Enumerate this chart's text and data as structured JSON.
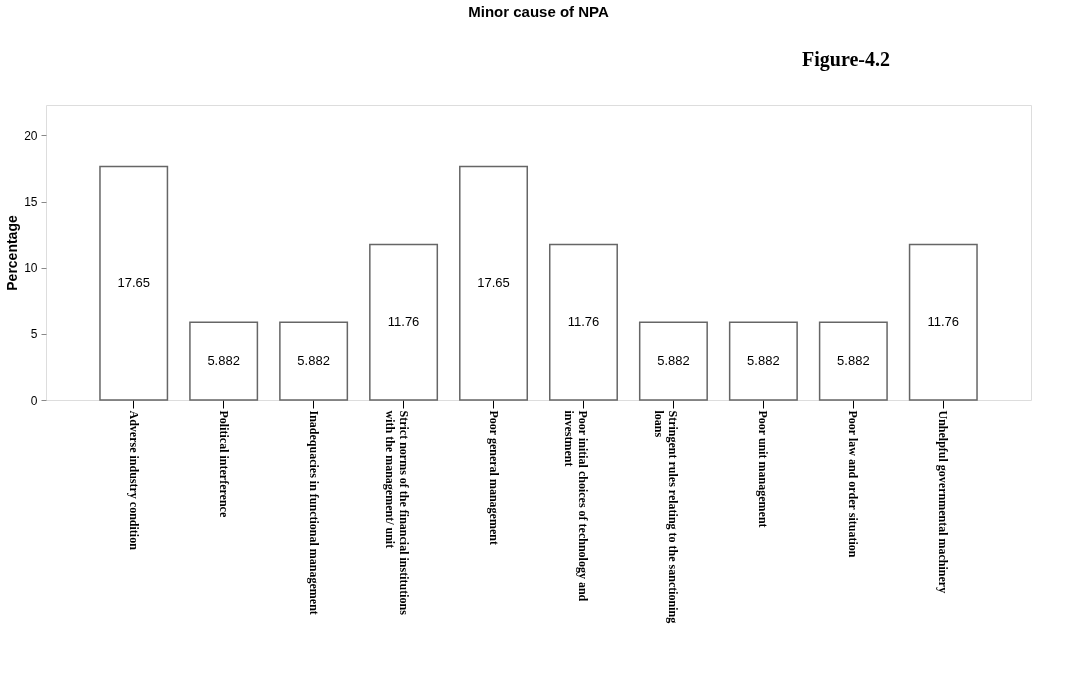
{
  "chart_data": {
    "type": "bar",
    "title": "Minor cause of NPA",
    "ylabel": "Percentage",
    "annotations": [
      "Figure-4.2"
    ],
    "categories": [
      "Adverse industry condition",
      "Political interference",
      "Inadequacies in functional management",
      "Strict norms of the financial institutions with the management/ unit",
      "Poor general management",
      "Poor initial choices of technology and investment",
      "Stringent rules relating to the sanctioning loans",
      "Poor unit management",
      "Poor law and order situation",
      "Unhelpful governmental machinery"
    ],
    "values": [
      17.65,
      5.882,
      5.882,
      11.76,
      17.65,
      11.76,
      5.882,
      5.882,
      5.882,
      11.76
    ],
    "color": "#ffffff",
    "ylim": [
      0,
      22.3
    ],
    "yticks": [
      0,
      5,
      10,
      15,
      20
    ],
    "grid": false,
    "data_labels": true
  }
}
